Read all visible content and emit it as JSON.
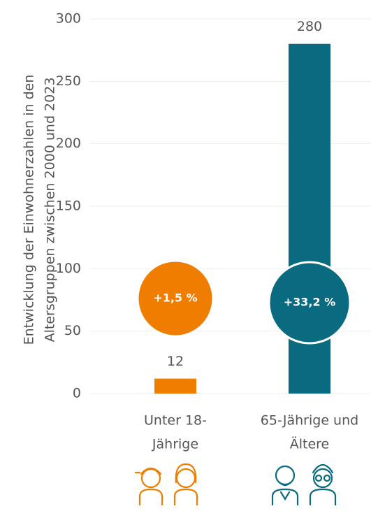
{
  "chart_data": {
    "type": "bar",
    "ylabel": [
      "Entwicklung der Einwohnerzahlen in den",
      "Altersgruppen zwischen 2000 und 2023"
    ],
    "categories": [
      [
        "Unter 18-",
        "Jährige"
      ],
      [
        "65-Jährige und",
        "Ältere"
      ]
    ],
    "values": [
      12,
      280
    ],
    "colors": [
      "#ef7d00",
      "#0a6b80"
    ],
    "annotations": [
      "+1,5 %",
      "+33,2 %"
    ],
    "ylim": [
      0,
      300
    ],
    "yticks": [
      0,
      50,
      100,
      150,
      200,
      250,
      300
    ],
    "grid": true
  }
}
